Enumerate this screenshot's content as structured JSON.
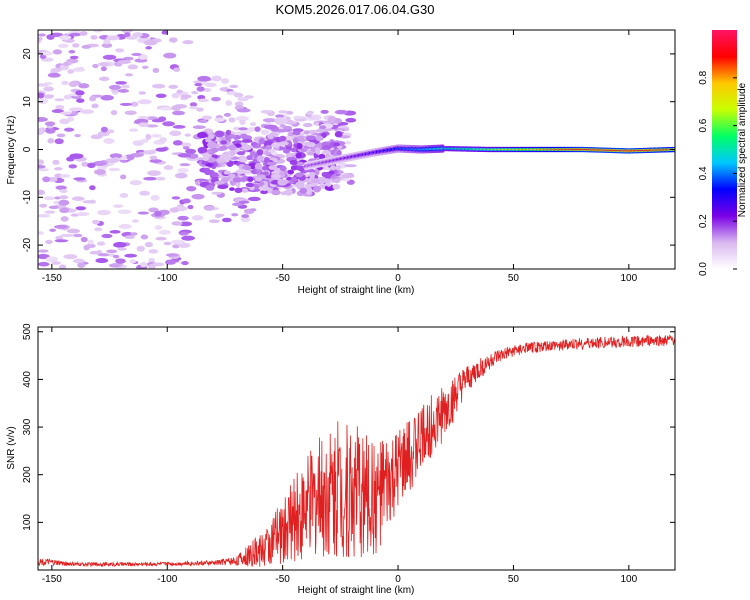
{
  "figure_title": "KOM5.2026.017.06.04.G30",
  "chart_data": [
    {
      "type": "heatmap",
      "title": "KOM5.2026.017.06.04.G30",
      "xlabel": "Height of straight line (km)",
      "ylabel": "Frequency (Hz)",
      "xlim": [
        -156,
        120
      ],
      "ylim": [
        -25,
        25
      ],
      "x_ticks": [
        -150,
        -100,
        -50,
        0,
        50,
        100
      ],
      "x_tick_labels": [
        "-150",
        "-100",
        "-50",
        "0",
        "50",
        "100"
      ],
      "y_ticks": [
        -20,
        -10,
        0,
        10,
        20
      ],
      "y_tick_labels": [
        "-20",
        "-10",
        "0",
        "10",
        "20"
      ],
      "colorbar": {
        "label": "Normalized spectral amplitude",
        "range": [
          0,
          1
        ],
        "ticks": [
          0,
          0.2,
          0.4,
          0.6,
          0.8
        ],
        "tick_labels": [
          "0.0",
          "0.2",
          "0.4",
          "0.6",
          "0.8"
        ],
        "colors": [
          "#ffffff",
          "#d9b8f0",
          "#7a00e6",
          "#0000ff",
          "#00c8ff",
          "#00ff64",
          "#c8ff00",
          "#ffc800",
          "#ff0000",
          "#ff1464"
        ]
      },
      "ridge": {
        "description_points_x": [
          -80,
          -60,
          -40,
          -25,
          -10,
          0,
          10,
          20,
          40,
          60,
          80,
          100,
          120
        ],
        "frequency_hz": [
          -2,
          -3,
          -3.5,
          -2,
          -0.6,
          0.2,
          0,
          0.2,
          0,
          0,
          0,
          -0.3,
          0
        ],
        "amplitude": [
          0.12,
          0.15,
          0.18,
          0.22,
          0.28,
          0.35,
          0.42,
          0.5,
          0.62,
          0.78,
          0.9,
          0.92,
          0.85
        ]
      }
    },
    {
      "type": "line",
      "xlabel": "Height of straight line (km)",
      "ylabel": "SNR (v/v)",
      "xlim": [
        -156,
        120
      ],
      "ylim": [
        0,
        510
      ],
      "x_ticks": [
        -150,
        -100,
        -50,
        0,
        50,
        100
      ],
      "x_tick_labels": [
        "-150",
        "-100",
        "-50",
        "0",
        "50",
        "100"
      ],
      "y_ticks": [
        100,
        200,
        300,
        400,
        500
      ],
      "y_tick_labels": [
        "100",
        "200",
        "300",
        "400",
        "500"
      ],
      "series": [
        {
          "name": "SNR",
          "color": "#e02020",
          "x": [
            -156,
            -140,
            -120,
            -100,
            -80,
            -70,
            -60,
            -50,
            -40,
            -30,
            -20,
            -10,
            0,
            10,
            20,
            30,
            40,
            50,
            60,
            80,
            100,
            120
          ],
          "y": [
            18,
            12,
            12,
            13,
            15,
            20,
            40,
            80,
            130,
            170,
            170,
            150,
            200,
            280,
            330,
            400,
            440,
            460,
            468,
            475,
            480,
            482
          ],
          "noise_amplitude": [
            8,
            4,
            4,
            4,
            5,
            10,
            35,
            70,
            110,
            140,
            150,
            120,
            90,
            70,
            60,
            30,
            18,
            12,
            12,
            12,
            12,
            12
          ]
        }
      ]
    }
  ]
}
